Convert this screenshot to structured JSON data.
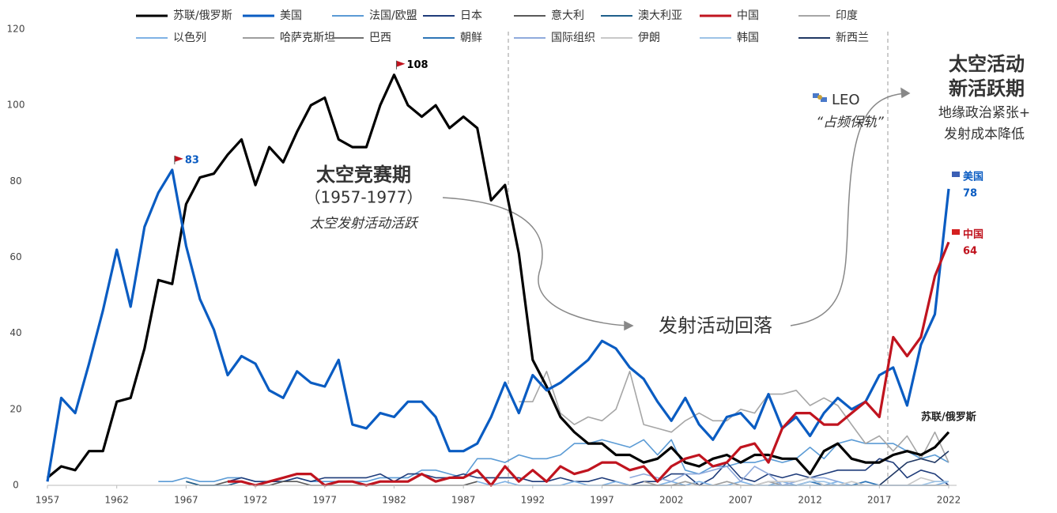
{
  "chart_data": {
    "type": "line",
    "x": [
      1957,
      1958,
      1959,
      1960,
      1961,
      1962,
      1963,
      1964,
      1965,
      1966,
      1967,
      1968,
      1969,
      1970,
      1971,
      1972,
      1973,
      1974,
      1975,
      1976,
      1977,
      1978,
      1979,
      1980,
      1981,
      1982,
      1983,
      1984,
      1985,
      1986,
      1987,
      1988,
      1989,
      1990,
      1991,
      1992,
      1993,
      1994,
      1995,
      1996,
      1997,
      1998,
      1999,
      2000,
      2001,
      2002,
      2003,
      2004,
      2005,
      2006,
      2007,
      2008,
      2009,
      2010,
      2011,
      2012,
      2013,
      2014,
      2015,
      2016,
      2017,
      2018,
      2019,
      2020,
      2021,
      2022
    ],
    "xlim": [
      1957,
      2022
    ],
    "xticks": [
      1957,
      1962,
      1967,
      1972,
      1977,
      1982,
      1987,
      1992,
      1997,
      2002,
      2007,
      2012,
      2017,
      2022
    ],
    "ylim": [
      0,
      120
    ],
    "yticks": [
      0,
      20,
      40,
      60,
      80,
      100,
      120
    ],
    "grid": false,
    "series": [
      {
        "name": "苏联/俄罗斯",
        "color": "#000000",
        "width": 3.2,
        "values": [
          2,
          5,
          4,
          9,
          9,
          22,
          23,
          36,
          54,
          53,
          74,
          81,
          82,
          87,
          91,
          79,
          89,
          85,
          93,
          100,
          102,
          91,
          89,
          89,
          100,
          108,
          100,
          97,
          100,
          94,
          97,
          94,
          75,
          79,
          61,
          33,
          26,
          18,
          14,
          11,
          11,
          8,
          8,
          6,
          7,
          10,
          6,
          5,
          7,
          8,
          6,
          8,
          8,
          7,
          7,
          3,
          9,
          11,
          7,
          6,
          6,
          8,
          9,
          8,
          10,
          14
        ]
      },
      {
        "name": "美国",
        "color": "#0a5cc2",
        "width": 3.2,
        "values": [
          1,
          23,
          19,
          32,
          46,
          62,
          47,
          68,
          77,
          83,
          63,
          49,
          41,
          29,
          34,
          32,
          25,
          23,
          30,
          27,
          26,
          33,
          16,
          15,
          19,
          18,
          22,
          22,
          18,
          9,
          9,
          11,
          18,
          27,
          19,
          29,
          25,
          27,
          30,
          33,
          38,
          36,
          31,
          28,
          22,
          17,
          23,
          16,
          12,
          18,
          19,
          15,
          24,
          15,
          18,
          13,
          19,
          23,
          20,
          22,
          29,
          31,
          21,
          37,
          45,
          78
        ]
      },
      {
        "name": "法国/欧盟",
        "color": "#5b9bd5",
        "width": 1.6,
        "values": [
          null,
          null,
          null,
          null,
          null,
          null,
          null,
          null,
          1,
          1,
          2,
          1,
          1,
          2,
          2,
          1,
          1,
          1,
          2,
          1,
          1,
          1,
          1,
          1,
          2,
          2,
          2,
          4,
          4,
          3,
          2,
          7,
          7,
          6,
          8,
          7,
          7,
          8,
          11,
          11,
          12,
          11,
          10,
          12,
          8,
          12,
          4,
          3,
          5,
          5,
          6,
          6,
          7,
          6,
          7,
          10,
          7,
          11,
          12,
          11,
          11,
          11,
          9,
          7,
          8,
          6
        ]
      },
      {
        "name": "日本",
        "color": "#1f3c7a",
        "width": 1.6,
        "values": [
          null,
          null,
          null,
          null,
          null,
          null,
          null,
          null,
          null,
          null,
          null,
          null,
          null,
          1,
          2,
          1,
          1,
          1,
          2,
          1,
          2,
          2,
          2,
          2,
          3,
          1,
          3,
          3,
          2,
          2,
          3,
          2,
          2,
          2,
          2,
          1,
          1,
          2,
          1,
          1,
          2,
          1,
          0,
          1,
          1,
          3,
          3,
          0,
          2,
          6,
          2,
          1,
          3,
          2,
          3,
          2,
          3,
          4,
          4,
          4,
          7,
          6,
          2,
          4,
          3,
          0
        ]
      },
      {
        "name": "意大利",
        "color": "#595959",
        "width": 1.6,
        "values": [
          null,
          null,
          null,
          null,
          null,
          null,
          null,
          null,
          null,
          null,
          1,
          0,
          0,
          1,
          1,
          0,
          0,
          1,
          1,
          0,
          0,
          0,
          0,
          0,
          0,
          0,
          0,
          0,
          0,
          0,
          0,
          1,
          null,
          null,
          null,
          null,
          null,
          null,
          null,
          null,
          null,
          null,
          null,
          null,
          null,
          null,
          null,
          null,
          null,
          null,
          null,
          null,
          null,
          null,
          null,
          null,
          null,
          null,
          null,
          null,
          null,
          null,
          null,
          null,
          null,
          null
        ]
      },
      {
        "name": "澳大利亚",
        "color": "#1f5f8b",
        "width": 1.6,
        "values": [
          null,
          null,
          null,
          null,
          null,
          null,
          null,
          null,
          null,
          null,
          1,
          0,
          0,
          0,
          1,
          null,
          null,
          null,
          null,
          null,
          null,
          null,
          null,
          null,
          null,
          null,
          null,
          null,
          null,
          null,
          null,
          null,
          null,
          null,
          null,
          null,
          null,
          null,
          null,
          null,
          null,
          null,
          null,
          null,
          null,
          null,
          null,
          null,
          null,
          null,
          null,
          null,
          null,
          null,
          null,
          null,
          null,
          null,
          null,
          null,
          null,
          null,
          null,
          null,
          null,
          null
        ]
      },
      {
        "name": "中国",
        "color": "#c0141f",
        "width": 3.2,
        "values": [
          null,
          null,
          null,
          null,
          null,
          null,
          null,
          null,
          null,
          null,
          null,
          null,
          null,
          1,
          1,
          0,
          1,
          2,
          3,
          3,
          0,
          1,
          1,
          0,
          1,
          1,
          1,
          3,
          1,
          2,
          2,
          4,
          0,
          5,
          1,
          4,
          1,
          5,
          3,
          4,
          6,
          6,
          4,
          5,
          1,
          5,
          7,
          8,
          5,
          6,
          10,
          11,
          6,
          15,
          19,
          19,
          16,
          16,
          19,
          22,
          18,
          39,
          34,
          39,
          55,
          64
        ]
      },
      {
        "name": "印度",
        "color": "#a6a6a6",
        "width": 1.6,
        "values": [
          null,
          null,
          null,
          null,
          null,
          null,
          null,
          null,
          null,
          null,
          null,
          null,
          null,
          null,
          null,
          null,
          null,
          null,
          null,
          null,
          null,
          null,
          null,
          null,
          null,
          null,
          null,
          null,
          null,
          null,
          null,
          null,
          null,
          null,
          22,
          22,
          30,
          19,
          16,
          18,
          17,
          20,
          30,
          16,
          15,
          14,
          17,
          19,
          17,
          17,
          20,
          19,
          24,
          24,
          25,
          21,
          23,
          21,
          16,
          11,
          13,
          9,
          13,
          7,
          14,
          6
        ]
      },
      {
        "name": "以色列",
        "color": "#7fb2e5",
        "width": 1.6,
        "values": [
          null,
          null,
          null,
          null,
          null,
          null,
          null,
          null,
          null,
          null,
          null,
          null,
          null,
          null,
          null,
          null,
          null,
          null,
          null,
          null,
          null,
          null,
          null,
          null,
          null,
          null,
          null,
          null,
          null,
          null,
          null,
          1,
          0,
          1,
          0,
          0,
          0,
          0,
          1,
          0,
          0,
          1,
          0,
          0,
          0,
          1,
          0,
          1,
          0,
          0,
          1,
          0,
          0,
          1,
          0,
          0,
          0,
          1,
          0,
          1,
          0,
          0,
          0,
          0,
          0,
          1
        ]
      },
      {
        "name": "哈萨克斯坦",
        "color": "#9e9e9e",
        "width": 1.6,
        "values": [
          null,
          null,
          null,
          null,
          null,
          null,
          null,
          null,
          null,
          null,
          null,
          null,
          null,
          null,
          null,
          null,
          null,
          null,
          null,
          null,
          null,
          null,
          null,
          null,
          null,
          null,
          null,
          null,
          null,
          null,
          null,
          null,
          null,
          null,
          null,
          null,
          null,
          null,
          null,
          null,
          null,
          null,
          null,
          1,
          0,
          0,
          1,
          0,
          0,
          1,
          0,
          0,
          1,
          0,
          0,
          1,
          0,
          0,
          0,
          0,
          0,
          0,
          0,
          0,
          0,
          0
        ]
      },
      {
        "name": "巴西",
        "color": "#707070",
        "width": 1.6,
        "values": [
          null,
          null,
          null,
          null,
          null,
          null,
          null,
          null,
          null,
          null,
          null,
          null,
          null,
          null,
          null,
          null,
          null,
          null,
          null,
          null,
          null,
          null,
          null,
          null,
          null,
          null,
          null,
          null,
          null,
          null,
          null,
          null,
          null,
          null,
          null,
          null,
          null,
          null,
          null,
          null,
          0,
          0,
          0,
          0,
          0,
          0,
          0,
          null,
          null,
          null,
          null,
          null,
          null,
          null,
          null,
          null,
          null,
          null,
          null,
          null,
          null,
          null,
          null,
          null,
          null,
          null
        ]
      },
      {
        "name": "朝鲜",
        "color": "#2e75b6",
        "width": 1.6,
        "values": [
          null,
          null,
          null,
          null,
          null,
          null,
          null,
          null,
          null,
          null,
          null,
          null,
          null,
          null,
          null,
          null,
          null,
          null,
          null,
          null,
          null,
          null,
          null,
          null,
          null,
          null,
          null,
          null,
          null,
          null,
          null,
          null,
          null,
          null,
          null,
          null,
          null,
          null,
          null,
          null,
          null,
          null,
          null,
          null,
          null,
          null,
          null,
          null,
          null,
          null,
          null,
          null,
          0,
          0,
          0,
          1,
          0,
          0,
          0,
          1,
          0,
          null,
          null,
          null,
          null,
          null
        ]
      },
      {
        "name": "国际组织",
        "color": "#8faadc",
        "width": 1.6,
        "values": [
          null,
          null,
          null,
          null,
          null,
          null,
          null,
          null,
          null,
          null,
          null,
          null,
          null,
          null,
          null,
          null,
          null,
          null,
          null,
          null,
          null,
          null,
          null,
          null,
          null,
          null,
          null,
          null,
          null,
          null,
          null,
          null,
          null,
          null,
          null,
          null,
          null,
          null,
          null,
          null,
          null,
          null,
          2,
          3,
          2,
          1,
          3,
          3,
          4,
          5,
          1,
          5,
          3,
          0,
          1,
          2,
          2,
          1,
          null,
          null,
          null,
          null,
          null,
          null,
          null,
          null
        ]
      },
      {
        "name": "伊朗",
        "color": "#c8c8c8",
        "width": 1.6,
        "values": [
          null,
          null,
          null,
          null,
          null,
          null,
          null,
          null,
          null,
          null,
          null,
          null,
          null,
          null,
          null,
          null,
          null,
          null,
          null,
          null,
          null,
          null,
          null,
          null,
          null,
          null,
          null,
          null,
          null,
          null,
          null,
          null,
          null,
          null,
          null,
          null,
          null,
          null,
          null,
          null,
          null,
          null,
          null,
          null,
          null,
          null,
          null,
          null,
          null,
          null,
          null,
          0,
          1,
          1,
          1,
          2,
          0,
          0,
          1,
          0,
          0,
          0,
          0,
          2,
          1,
          1
        ]
      },
      {
        "name": "韩国",
        "color": "#9dc3e6",
        "width": 1.6,
        "values": [
          null,
          null,
          null,
          null,
          null,
          null,
          null,
          null,
          null,
          null,
          null,
          null,
          null,
          null,
          null,
          null,
          null,
          null,
          null,
          null,
          null,
          null,
          null,
          null,
          null,
          null,
          null,
          null,
          null,
          null,
          null,
          null,
          null,
          null,
          null,
          null,
          null,
          null,
          null,
          null,
          null,
          null,
          null,
          null,
          null,
          null,
          null,
          null,
          null,
          null,
          null,
          null,
          0,
          0,
          0,
          1,
          1,
          0,
          0,
          0,
          0,
          0,
          0,
          0,
          1,
          1
        ]
      },
      {
        "name": "新西兰",
        "color": "#203864",
        "width": 1.6,
        "values": [
          null,
          null,
          null,
          null,
          null,
          null,
          null,
          null,
          null,
          null,
          null,
          null,
          null,
          null,
          null,
          null,
          null,
          null,
          null,
          null,
          null,
          null,
          null,
          null,
          null,
          null,
          null,
          null,
          null,
          null,
          null,
          null,
          null,
          null,
          null,
          null,
          null,
          null,
          null,
          null,
          null,
          null,
          null,
          null,
          null,
          null,
          null,
          null,
          null,
          null,
          null,
          null,
          null,
          null,
          null,
          null,
          null,
          null,
          null,
          null,
          0,
          3,
          6,
          7,
          6,
          9
        ]
      }
    ],
    "annotations": [
      "太空竞赛期",
      "（1957-1977）",
      "太空发射活动活跃",
      "发射活动回落",
      "LEO",
      "“占频保轨”",
      "太空活动",
      "新活跃期",
      "地缘政治紧张+",
      "发射成本降低"
    ]
  }
}
